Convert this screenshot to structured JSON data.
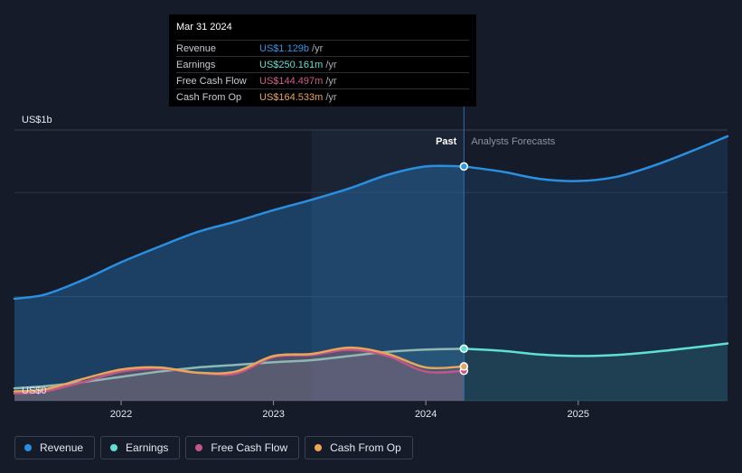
{
  "colors": {
    "revenue": "#2a8fe0",
    "earnings": "#5fe0d3",
    "free_cash_flow": "#c25688",
    "cash_from_op": "#e9a55a",
    "background": "#151b28"
  },
  "tooltip": {
    "date": "Mar 31 2024",
    "rows": [
      {
        "label": "Revenue",
        "value": "US$1.129b",
        "unit": "/yr",
        "color": "#2f96e8"
      },
      {
        "label": "Earnings",
        "value": "US$250.161m",
        "unit": "/yr",
        "color": "#5fe0d3"
      },
      {
        "label": "Free Cash Flow",
        "value": "US$144.497m",
        "unit": "/yr",
        "color": "#d15c92"
      },
      {
        "label": "Cash From Op",
        "value": "US$164.533m",
        "unit": "/yr",
        "color": "#e9a55a"
      }
    ]
  },
  "chart_data": {
    "type": "area",
    "y_unit": "US$ millions",
    "y_axis_labels": {
      "top": "US$1b",
      "bottom": "US$0"
    },
    "ylim": [
      0,
      1300
    ],
    "xlim": [
      2021.3,
      2025.98
    ],
    "x_ticks": [
      {
        "value": 2022,
        "label": "2022"
      },
      {
        "value": 2023,
        "label": "2023"
      },
      {
        "value": 2024,
        "label": "2024"
      },
      {
        "value": 2025,
        "label": "2025"
      }
    ],
    "gridlines": [
      0,
      500,
      1000
    ],
    "past_label": "Past",
    "forecast_label": "Analysts Forecasts",
    "past_end_x": 2024.25,
    "highlight_start_x": 2023.25,
    "series": [
      {
        "key": "revenue",
        "name": "Revenue",
        "past": [
          [
            2021.3,
            490
          ],
          [
            2021.5,
            510
          ],
          [
            2021.75,
            580
          ],
          [
            2022.0,
            665
          ],
          [
            2022.25,
            740
          ],
          [
            2022.5,
            810
          ],
          [
            2022.75,
            860
          ],
          [
            2023.0,
            915
          ],
          [
            2023.25,
            965
          ],
          [
            2023.5,
            1020
          ],
          [
            2023.75,
            1085
          ],
          [
            2024.0,
            1125
          ],
          [
            2024.25,
            1125
          ]
        ],
        "forecast": [
          [
            2024.25,
            1125
          ],
          [
            2024.5,
            1100
          ],
          [
            2024.75,
            1065
          ],
          [
            2025.0,
            1055
          ],
          [
            2025.25,
            1075
          ],
          [
            2025.5,
            1130
          ],
          [
            2025.75,
            1200
          ],
          [
            2025.98,
            1270
          ]
        ]
      },
      {
        "key": "earnings",
        "name": "Earnings",
        "past": [
          [
            2021.3,
            60
          ],
          [
            2021.5,
            70
          ],
          [
            2021.75,
            90
          ],
          [
            2022.0,
            115
          ],
          [
            2022.25,
            140
          ],
          [
            2022.5,
            160
          ],
          [
            2022.75,
            172
          ],
          [
            2023.0,
            185
          ],
          [
            2023.25,
            195
          ],
          [
            2023.5,
            215
          ],
          [
            2023.75,
            235
          ],
          [
            2024.0,
            246
          ],
          [
            2024.25,
            250
          ]
        ],
        "forecast": [
          [
            2024.25,
            250
          ],
          [
            2024.5,
            240
          ],
          [
            2024.75,
            222
          ],
          [
            2025.0,
            215
          ],
          [
            2025.25,
            220
          ],
          [
            2025.5,
            235
          ],
          [
            2025.75,
            255
          ],
          [
            2025.98,
            275
          ]
        ]
      },
      {
        "key": "free_cash_flow",
        "name": "Free Cash Flow",
        "past": [
          [
            2021.3,
            35
          ],
          [
            2021.5,
            45
          ],
          [
            2021.75,
            90
          ],
          [
            2022.0,
            140
          ],
          [
            2022.25,
            155
          ],
          [
            2022.5,
            135
          ],
          [
            2022.75,
            130
          ],
          [
            2023.0,
            210
          ],
          [
            2023.25,
            220
          ],
          [
            2023.5,
            245
          ],
          [
            2023.75,
            215
          ],
          [
            2024.0,
            140
          ],
          [
            2024.25,
            144
          ]
        ],
        "forecast": []
      },
      {
        "key": "cash_from_op",
        "name": "Cash From Op",
        "past": [
          [
            2021.3,
            45
          ],
          [
            2021.5,
            55
          ],
          [
            2021.75,
            105
          ],
          [
            2022.0,
            150
          ],
          [
            2022.25,
            160
          ],
          [
            2022.5,
            135
          ],
          [
            2022.75,
            140
          ],
          [
            2023.0,
            215
          ],
          [
            2023.25,
            225
          ],
          [
            2023.5,
            255
          ],
          [
            2023.75,
            225
          ],
          [
            2024.0,
            160
          ],
          [
            2024.25,
            165
          ]
        ],
        "forecast": []
      }
    ]
  },
  "legend": [
    {
      "key": "revenue",
      "label": "Revenue",
      "color": "#2a8fe0"
    },
    {
      "key": "earnings",
      "label": "Earnings",
      "color": "#5fe0d3"
    },
    {
      "key": "free_cash_flow",
      "label": "Free Cash Flow",
      "color": "#c25688"
    },
    {
      "key": "cash_from_op",
      "label": "Cash From Op",
      "color": "#e9a55a"
    }
  ]
}
